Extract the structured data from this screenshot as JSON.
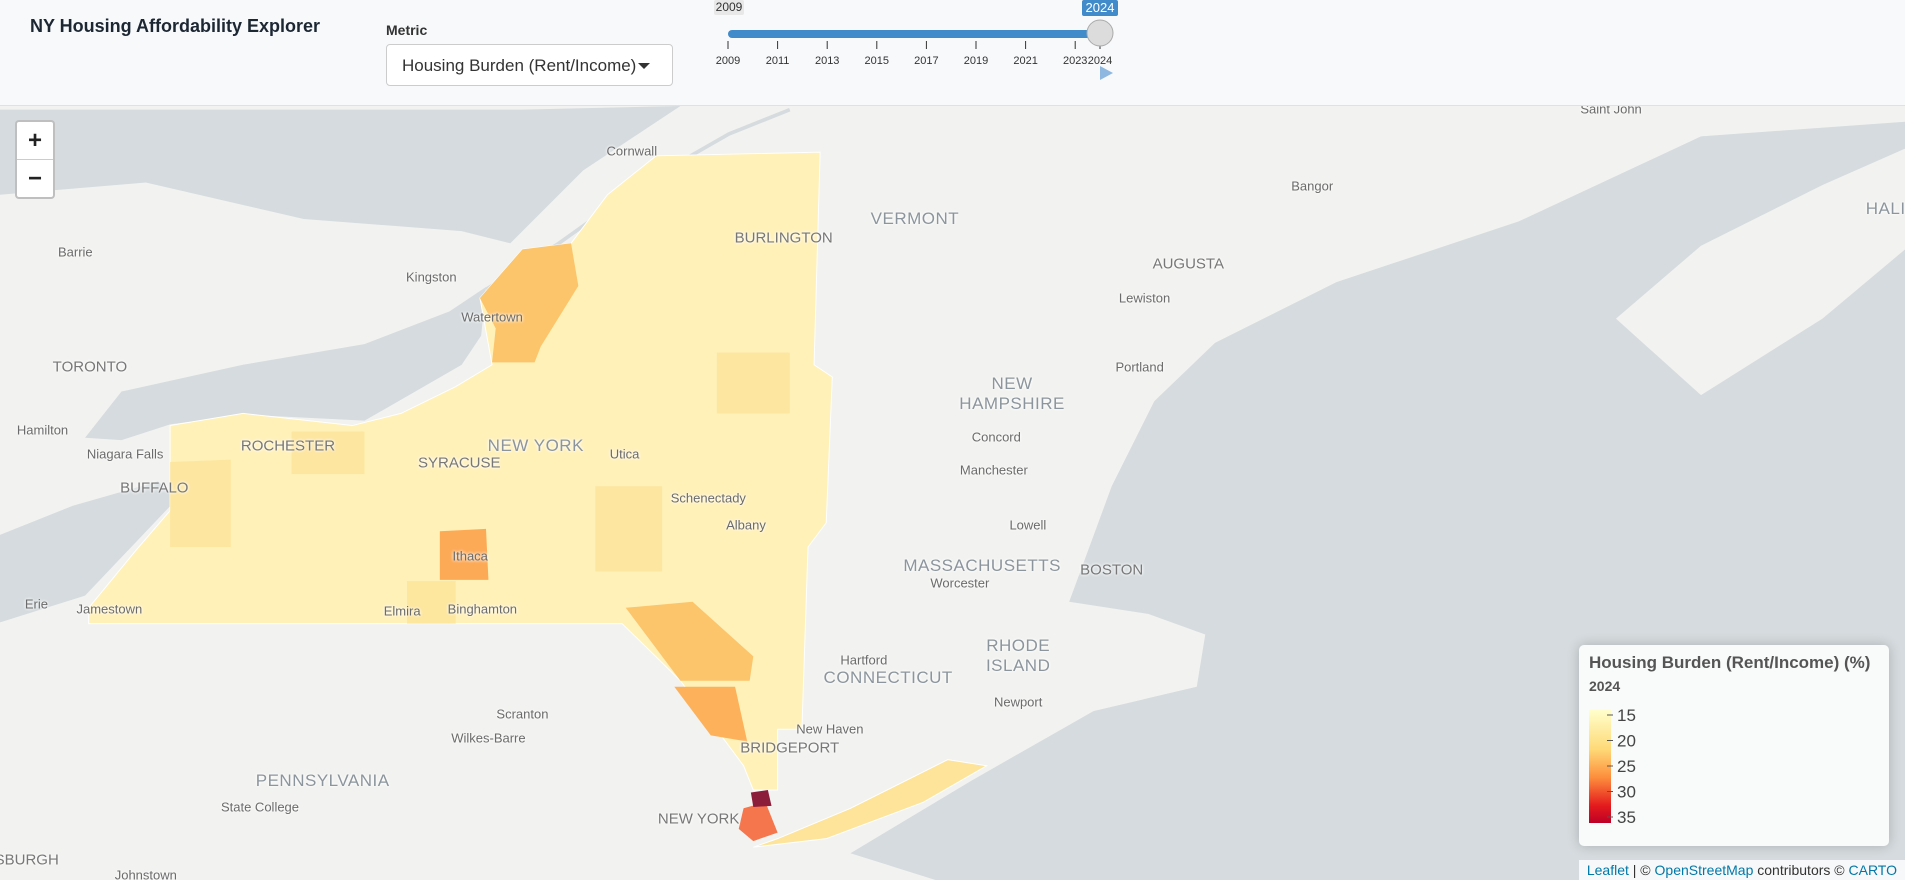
{
  "header": {
    "title": "NY Housing Affordability Explorer"
  },
  "metric": {
    "label": "Metric",
    "selected": "Housing Burden (Rent/Income)"
  },
  "slider": {
    "min": 2009,
    "max": 2024,
    "value": 2024,
    "ticks": [
      2009,
      2011,
      2013,
      2015,
      2017,
      2019,
      2021,
      2023,
      2024
    ]
  },
  "map": {
    "zoom_in": "+",
    "zoom_out": "−",
    "labels": [
      "Cornwall",
      "Saint John",
      "BURLINGTON",
      "VERMONT",
      "Bangor",
      "HALI",
      "Barrie",
      "Kingston",
      "AUGUSTA",
      "Lewiston",
      "Watertown",
      "TORONTO",
      "Portland",
      "NEW HAMPSHIRE",
      "Hamilton",
      "Concord",
      "ROCHESTER",
      "NEW YORK",
      "Niagara Falls",
      "SYRACUSE",
      "Utica",
      "Manchester",
      "BUFFALO",
      "Schenectady",
      "Albany",
      "Lowell",
      "Ithaca",
      "MASSACHUSETTS",
      "BOSTON",
      "Worcester",
      "Erie",
      "Jamestown",
      "Elmira",
      "Binghamton",
      "Hartford",
      "RHODE ISLAND",
      "CONNECTICUT",
      "Newport",
      "Scranton",
      "New Haven",
      "Wilkes-Barre",
      "BRIDGEPORT",
      "PENNSYLVANIA",
      "State College",
      "NEW YORK",
      "SBURGH",
      "Johnstown"
    ]
  },
  "legend": {
    "title": "Housing Burden (Rent/Income) (%)",
    "subtitle": 2024,
    "ticks": [
      15,
      20,
      25,
      30,
      35
    ]
  },
  "attribution": [
    "Leaflet",
    "| ©",
    "OpenStreetMap",
    "contributors ©",
    "CARTO"
  ]
}
